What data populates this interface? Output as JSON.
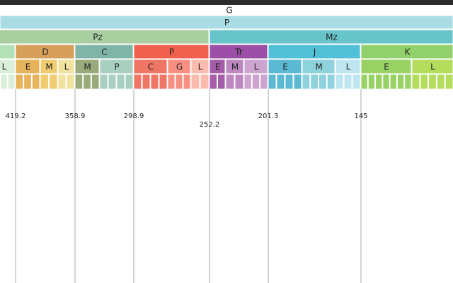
{
  "header": {
    "title": "G"
  },
  "eon": {
    "label": "P"
  },
  "eras": [
    {
      "label": "Pz"
    },
    {
      "label": "Mz"
    }
  ],
  "periods": [
    {
      "label": "D"
    },
    {
      "label": "C"
    },
    {
      "label": "P"
    },
    {
      "label": "Tr"
    },
    {
      "label": "J"
    },
    {
      "label": "K"
    }
  ],
  "epochs": [
    {
      "label": "L"
    },
    {
      "label": "E"
    },
    {
      "label": "M"
    },
    {
      "label": "L"
    },
    {
      "label": "M"
    },
    {
      "label": "P"
    },
    {
      "label": "C"
    },
    {
      "label": "G"
    },
    {
      "label": "L"
    },
    {
      "label": "E"
    },
    {
      "label": "M"
    },
    {
      "label": "L"
    },
    {
      "label": "E"
    },
    {
      "label": "M"
    },
    {
      "label": "L"
    },
    {
      "label": "E"
    },
    {
      "label": "L"
    }
  ],
  "boundaries": [
    419.2,
    358.9,
    298.9,
    252.2,
    201.3,
    145
  ]
}
